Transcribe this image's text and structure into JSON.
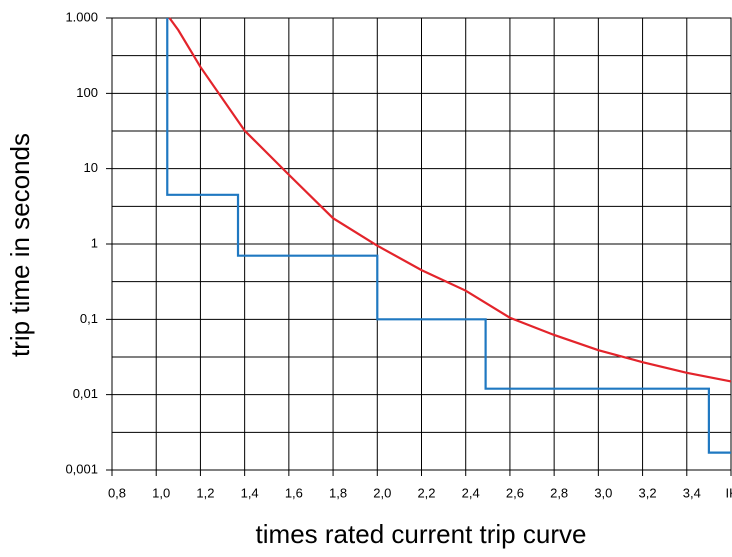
{
  "chart_data": {
    "type": "line",
    "x_label": "times rated current trip curve",
    "y_label": "trip time in seconds",
    "xlim": [
      0.8,
      3.6
    ],
    "xticks": [
      {
        "value": 0.8,
        "label": "0,8"
      },
      {
        "value": 1.0,
        "label": "1,0"
      },
      {
        "value": 1.2,
        "label": "1,2"
      },
      {
        "value": 1.4,
        "label": "1,4"
      },
      {
        "value": 1.6,
        "label": "1,6"
      },
      {
        "value": 1.8,
        "label": "1,8"
      },
      {
        "value": 2.0,
        "label": "2,0"
      },
      {
        "value": 2.2,
        "label": "2,2"
      },
      {
        "value": 2.4,
        "label": "2,4"
      },
      {
        "value": 2.6,
        "label": "2,6"
      },
      {
        "value": 2.8,
        "label": "2,8"
      },
      {
        "value": 3.0,
        "label": "3,0"
      },
      {
        "value": 3.2,
        "label": "3,2"
      },
      {
        "value": 3.4,
        "label": "3,4"
      },
      {
        "value": 3.6,
        "label": "IKS"
      }
    ],
    "ylim": [
      0.001,
      1000
    ],
    "y_scale": "log",
    "yticks": [
      {
        "value": 0.001,
        "label": "0,001"
      },
      {
        "value": 0.01,
        "label": "0,01"
      },
      {
        "value": 0.1,
        "label": "0,1"
      },
      1,
      10,
      100,
      {
        "value": 1000,
        "label": "1.000"
      }
    ],
    "y_minor_ticks": [
      0.003162,
      0.03162,
      0.3162,
      3.162,
      31.62,
      316.2
    ],
    "grid": true,
    "series": [
      {
        "color": "#e3242b",
        "x": [
          1.06,
          1.1,
          1.2,
          1.4,
          1.6,
          1.8,
          2.0,
          2.2,
          2.4,
          2.6,
          2.8,
          3.0,
          3.2,
          3.4,
          3.6
        ],
        "values": [
          1000,
          690,
          224,
          32,
          8.3,
          2.2,
          0.95,
          0.45,
          0.24,
          0.105,
          0.062,
          0.039,
          0.027,
          0.0195,
          0.015
        ]
      },
      {
        "color": "#1f78c1",
        "x": [
          1.05,
          1.05,
          1.37,
          1.37,
          2.0,
          2.0,
          2.49,
          2.49,
          3.5,
          3.5,
          3.6
        ],
        "values": [
          1000,
          4.5,
          4.5,
          0.7,
          0.7,
          0.1,
          0.1,
          0.012,
          0.012,
          0.0017,
          0.0017
        ]
      }
    ]
  }
}
